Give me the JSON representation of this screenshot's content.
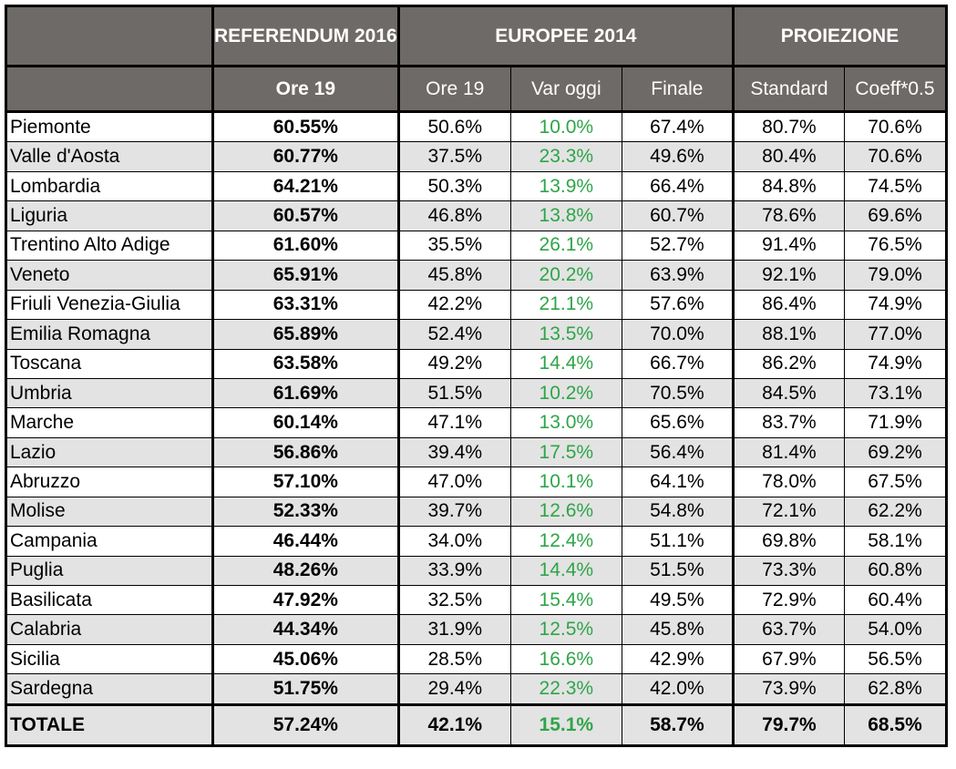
{
  "chart_data": {
    "type": "table",
    "header_groups": {
      "referendum": "REFERENDUM 2016",
      "europee": "EUROPEE 2014",
      "proiezione": "PROIEZIONE"
    },
    "columns": [
      "Ore 19",
      "Ore 19",
      "Var oggi",
      "Finale",
      "Standard",
      "Coeff*0.5"
    ],
    "rows": [
      {
        "region": "Piemonte",
        "values": [
          "60.55%",
          "50.6%",
          "10.0%",
          "67.4%",
          "80.7%",
          "70.6%"
        ]
      },
      {
        "region": "Valle d'Aosta",
        "values": [
          "60.77%",
          "37.5%",
          "23.3%",
          "49.6%",
          "80.4%",
          "70.6%"
        ]
      },
      {
        "region": "Lombardia",
        "values": [
          "64.21%",
          "50.3%",
          "13.9%",
          "66.4%",
          "84.8%",
          "74.5%"
        ]
      },
      {
        "region": "Liguria",
        "values": [
          "60.57%",
          "46.8%",
          "13.8%",
          "60.7%",
          "78.6%",
          "69.6%"
        ]
      },
      {
        "region": "Trentino Alto Adige",
        "values": [
          "61.60%",
          "35.5%",
          "26.1%",
          "52.7%",
          "91.4%",
          "76.5%"
        ]
      },
      {
        "region": "Veneto",
        "values": [
          "65.91%",
          "45.8%",
          "20.2%",
          "63.9%",
          "92.1%",
          "79.0%"
        ]
      },
      {
        "region": "Friuli Venezia-Giulia",
        "values": [
          "63.31%",
          "42.2%",
          "21.1%",
          "57.6%",
          "86.4%",
          "74.9%"
        ]
      },
      {
        "region": "Emilia Romagna",
        "values": [
          "65.89%",
          "52.4%",
          "13.5%",
          "70.0%",
          "88.1%",
          "77.0%"
        ]
      },
      {
        "region": "Toscana",
        "values": [
          "63.58%",
          "49.2%",
          "14.4%",
          "66.7%",
          "86.2%",
          "74.9%"
        ]
      },
      {
        "region": "Umbria",
        "values": [
          "61.69%",
          "51.5%",
          "10.2%",
          "70.5%",
          "84.5%",
          "73.1%"
        ]
      },
      {
        "region": "Marche",
        "values": [
          "60.14%",
          "47.1%",
          "13.0%",
          "65.6%",
          "83.7%",
          "71.9%"
        ]
      },
      {
        "region": "Lazio",
        "values": [
          "56.86%",
          "39.4%",
          "17.5%",
          "56.4%",
          "81.4%",
          "69.2%"
        ]
      },
      {
        "region": "Abruzzo",
        "values": [
          "57.10%",
          "47.0%",
          "10.1%",
          "64.1%",
          "78.0%",
          "67.5%"
        ]
      },
      {
        "region": "Molise",
        "values": [
          "52.33%",
          "39.7%",
          "12.6%",
          "54.8%",
          "72.1%",
          "62.2%"
        ]
      },
      {
        "region": "Campania",
        "values": [
          "46.44%",
          "34.0%",
          "12.4%",
          "51.1%",
          "69.8%",
          "58.1%"
        ]
      },
      {
        "region": "Puglia",
        "values": [
          "48.26%",
          "33.9%",
          "14.4%",
          "51.5%",
          "73.3%",
          "60.8%"
        ]
      },
      {
        "region": "Basilicata",
        "values": [
          "47.92%",
          "32.5%",
          "15.4%",
          "49.5%",
          "72.9%",
          "60.4%"
        ]
      },
      {
        "region": "Calabria",
        "values": [
          "44.34%",
          "31.9%",
          "12.5%",
          "45.8%",
          "63.7%",
          "54.0%"
        ]
      },
      {
        "region": "Sicilia",
        "values": [
          "45.06%",
          "28.5%",
          "16.6%",
          "42.9%",
          "67.9%",
          "56.5%"
        ]
      },
      {
        "region": "Sardegna",
        "values": [
          "51.75%",
          "29.4%",
          "22.3%",
          "42.0%",
          "73.9%",
          "62.8%"
        ]
      }
    ],
    "total": {
      "region": "TOTALE",
      "values": [
        "57.24%",
        "42.1%",
        "15.1%",
        "58.7%",
        "79.7%",
        "68.5%"
      ]
    }
  },
  "colors": {
    "header_bg": "#6e6a67",
    "header_text": "#ffffff",
    "alt_row_bg": "#e3e3e3",
    "var_text": "#2ea548"
  }
}
